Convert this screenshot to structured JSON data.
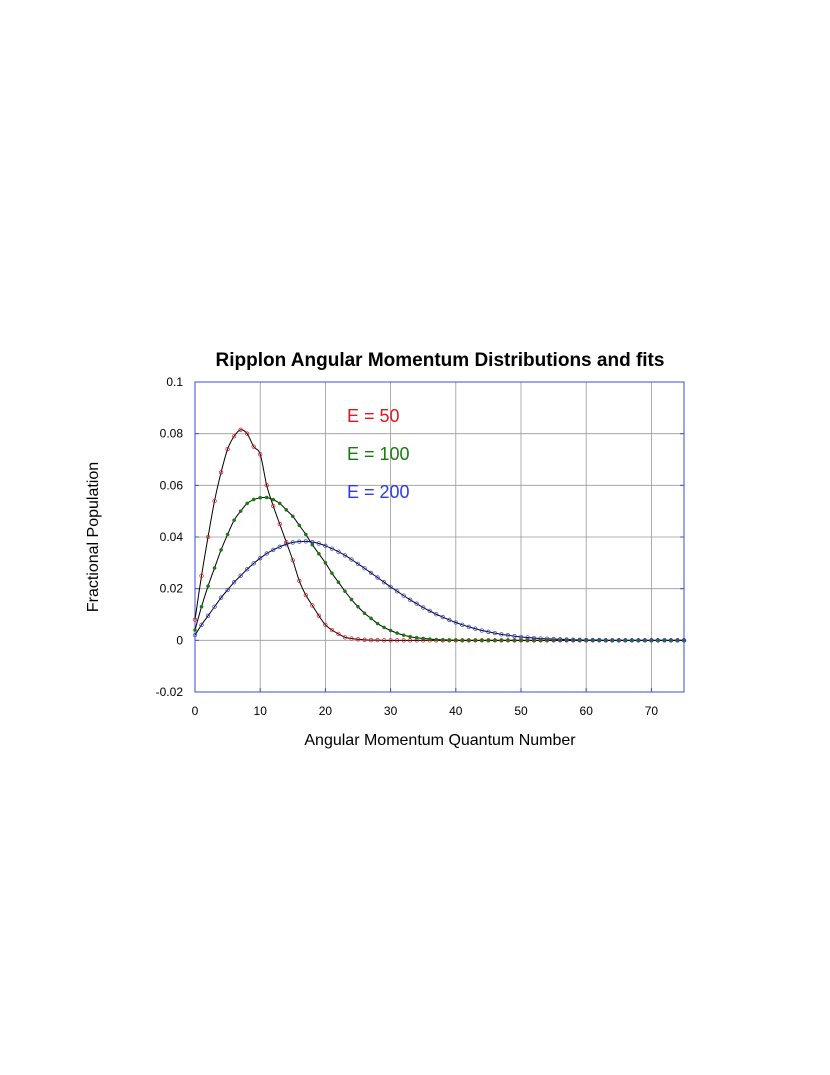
{
  "chart_data": {
    "type": "scatter",
    "title": "Ripplon Angular Momentum Distributions and fits",
    "xlabel": "Angular Momentum Quantum Number",
    "ylabel": "Fractional Population",
    "xlim": [
      0,
      75
    ],
    "ylim": [
      -0.02,
      0.1
    ],
    "x_ticks": [
      "0",
      "10",
      "20",
      "30",
      "40",
      "50",
      "60",
      "70"
    ],
    "y_ticks": [
      "-0.02",
      "0",
      "0.02",
      "0.04",
      "0.06",
      "0.08",
      "0.1"
    ],
    "grid": true,
    "annotations": [
      {
        "text": "E = 50",
        "color": "#e8141e"
      },
      {
        "text": "E = 100",
        "color": "#1a7a10"
      },
      {
        "text": "E = 200",
        "color": "#2c3ce0"
      }
    ],
    "series": [
      {
        "color": "#e8141e",
        "marker": "open-circle",
        "x": [
          0,
          1,
          2,
          3,
          4,
          5,
          6,
          7,
          8,
          9,
          10,
          11,
          12,
          13,
          14,
          15,
          16,
          17,
          18,
          19,
          20,
          21,
          22,
          23,
          24,
          25,
          26,
          27,
          28,
          29,
          30,
          31,
          32,
          33,
          34,
          35,
          36,
          37,
          38,
          39,
          40,
          41,
          42,
          43,
          44,
          45,
          46,
          47,
          48,
          49,
          50,
          51,
          52,
          53,
          54,
          55,
          56,
          57,
          58,
          59,
          60,
          61,
          62,
          63,
          64,
          65,
          66,
          67,
          68,
          69,
          70,
          71,
          72,
          73,
          74,
          75
        ],
        "y": [
          0.008,
          0.025,
          0.04,
          0.054,
          0.065,
          0.074,
          0.079,
          0.0815,
          0.08,
          0.075,
          0.072,
          0.06,
          0.052,
          0.045,
          0.038,
          0.031,
          0.023,
          0.0175,
          0.0135,
          0.0095,
          0.006,
          0.004,
          0.0025,
          0.0012,
          0.0007,
          0.0004,
          0.0002,
          0.0001,
          0.0001,
          0,
          0,
          0,
          0,
          0,
          0,
          0,
          0,
          0,
          0,
          0,
          0,
          0,
          0,
          0,
          0,
          0,
          0,
          0,
          0,
          0,
          0,
          0,
          0,
          0,
          0,
          0,
          0,
          0,
          0,
          0,
          0,
          0,
          0,
          0,
          0,
          0,
          0,
          0,
          0,
          0,
          0,
          0,
          0,
          0,
          0,
          0
        ]
      },
      {
        "color": "#1a7a10",
        "marker": "filled-circle",
        "x": [
          0,
          1,
          2,
          3,
          4,
          5,
          6,
          7,
          8,
          9,
          10,
          11,
          12,
          13,
          14,
          15,
          16,
          17,
          18,
          19,
          20,
          21,
          22,
          23,
          24,
          25,
          26,
          27,
          28,
          29,
          30,
          31,
          32,
          33,
          34,
          35,
          36,
          37,
          38,
          39,
          40,
          41,
          42,
          43,
          44,
          45,
          46,
          47,
          48,
          49,
          50,
          51,
          52,
          53,
          54,
          55,
          56,
          57,
          58,
          59,
          60,
          61,
          62,
          63,
          64,
          65,
          66,
          67,
          68,
          69,
          70,
          71,
          72,
          73,
          74,
          75
        ],
        "y": [
          0.004,
          0.013,
          0.021,
          0.028,
          0.035,
          0.041,
          0.0465,
          0.05,
          0.053,
          0.0545,
          0.0552,
          0.0553,
          0.0545,
          0.053,
          0.0505,
          0.048,
          0.0445,
          0.041,
          0.037,
          0.0335,
          0.03,
          0.026,
          0.0225,
          0.019,
          0.0158,
          0.013,
          0.0105,
          0.0085,
          0.0065,
          0.005,
          0.0038,
          0.0028,
          0.002,
          0.0014,
          0.001,
          0.0007,
          0.0005,
          0.0003,
          0.0002,
          0.0001,
          0.0001,
          0,
          0,
          0,
          0,
          0,
          0,
          0,
          0,
          0,
          0,
          0,
          0,
          0,
          0,
          0,
          0,
          0,
          0,
          0,
          0,
          0,
          0,
          0,
          0,
          0,
          0,
          0,
          0,
          0,
          0,
          0,
          0,
          0,
          0,
          0
        ]
      },
      {
        "color": "#2c3ce0",
        "marker": "open-circle",
        "x": [
          0,
          1,
          2,
          3,
          4,
          5,
          6,
          7,
          8,
          9,
          10,
          11,
          12,
          13,
          14,
          15,
          16,
          17,
          18,
          19,
          20,
          21,
          22,
          23,
          24,
          25,
          26,
          27,
          28,
          29,
          30,
          31,
          32,
          33,
          34,
          35,
          36,
          37,
          38,
          39,
          40,
          41,
          42,
          43,
          44,
          45,
          46,
          47,
          48,
          49,
          50,
          51,
          52,
          53,
          54,
          55,
          56,
          57,
          58,
          59,
          60,
          61,
          62,
          63,
          64,
          65,
          66,
          67,
          68,
          69,
          70,
          71,
          72,
          73,
          74,
          75
        ],
        "y": [
          0.002,
          0.006,
          0.0095,
          0.013,
          0.0165,
          0.0195,
          0.0225,
          0.025,
          0.0275,
          0.0298,
          0.0318,
          0.0336,
          0.035,
          0.0362,
          0.0372,
          0.0379,
          0.0382,
          0.0383,
          0.038,
          0.0375,
          0.0366,
          0.0355,
          0.0343,
          0.0329,
          0.0313,
          0.0296,
          0.0279,
          0.0261,
          0.0243,
          0.0225,
          0.0207,
          0.019,
          0.0173,
          0.0157,
          0.0142,
          0.0127,
          0.0114,
          0.0101,
          0.009,
          0.0079,
          0.0069,
          0.006,
          0.0052,
          0.0045,
          0.0038,
          0.0033,
          0.0028,
          0.0023,
          0.002,
          0.0016,
          0.0013,
          0.0011,
          0.0009,
          0.0007,
          0.0006,
          0.0005,
          0.0004,
          0.0003,
          0.0002,
          0.0002,
          0.0001,
          0.0001,
          0.0001,
          0,
          0,
          0,
          0,
          0,
          0,
          0,
          0,
          0,
          0,
          0,
          0,
          0
        ]
      }
    ]
  }
}
